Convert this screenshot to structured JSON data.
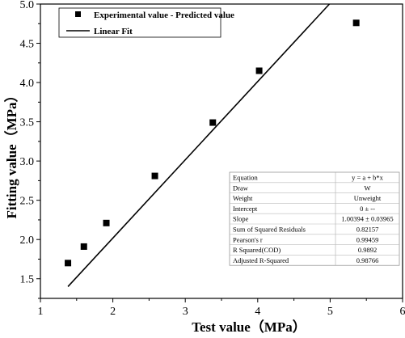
{
  "chart_data": {
    "type": "scatter",
    "xlabel": "Test value（MPa）",
    "ylabel": "Fitting value（MPa）",
    "xlim": [
      1,
      6
    ],
    "ylim": [
      1.25,
      5.0
    ],
    "xticks": [
      1,
      2,
      3,
      4,
      5,
      6
    ],
    "yticks": [
      1.5,
      2.0,
      2.5,
      3.0,
      3.5,
      4.0,
      4.5,
      5.0
    ],
    "xtick_labels": [
      "1",
      "2",
      "3",
      "4",
      "5",
      "6"
    ],
    "ytick_labels": [
      "1.5",
      "2.0",
      "2.5",
      "3.0",
      "3.5",
      "4.0",
      "4.5",
      "5.0"
    ],
    "grid": false,
    "legend_position": "top-left",
    "series": [
      {
        "name": "Experimental value - Predicted value",
        "kind": "scatter",
        "marker": "square",
        "color": "#000000",
        "x": [
          1.38,
          1.6,
          1.91,
          2.58,
          3.38,
          4.02,
          5.36
        ],
        "y": [
          1.7,
          1.91,
          2.21,
          2.81,
          3.49,
          4.15,
          4.76
        ]
      },
      {
        "name": "Linear Fit",
        "kind": "line",
        "color": "#000000",
        "x": [
          1.38,
          4.99
        ],
        "y": [
          1.4,
          5.0
        ]
      }
    ],
    "stats_table": [
      [
        "Equation",
        "y = a + b*x"
      ],
      [
        "Draw",
        "W"
      ],
      [
        "Weight",
        "Unweight"
      ],
      [
        "Intercept",
        "0 ± --"
      ],
      [
        "Slope",
        "1.00394 ± 0.03965"
      ],
      [
        "Sum of Squared Residuals",
        "0.82157"
      ],
      [
        "Pearson's r",
        "0.99459"
      ],
      [
        "R Squared(COD)",
        "0.9892"
      ],
      [
        "Adjusted R-Squared",
        "0.98766"
      ]
    ]
  }
}
